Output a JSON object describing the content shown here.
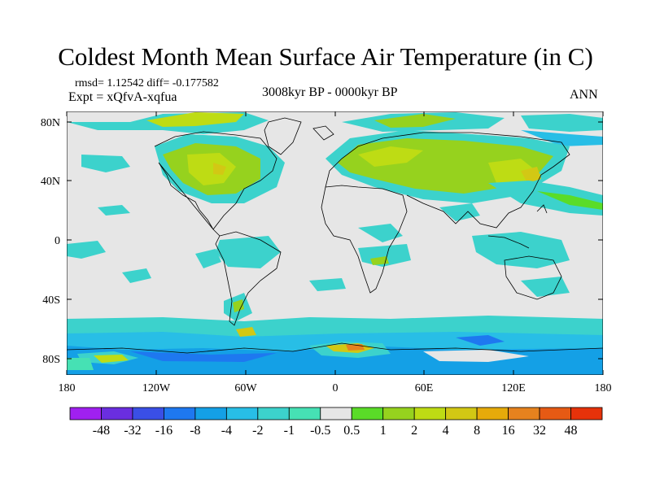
{
  "title": "Coldest Month Mean Surface Air Temperature (in C)",
  "stats": {
    "rmsd_label": "rmsd= 1.12542 diff= -0.177582"
  },
  "experiment": "Expt = xQfvA-xqfua",
  "period": "3008kyr BP - 0000kyr BP",
  "season": "ANN",
  "axes": {
    "y_ticks": [
      "80N",
      "40N",
      "0",
      "40S",
      "80S"
    ],
    "x_ticks": [
      "180",
      "120W",
      "60W",
      "0",
      "60E",
      "120E",
      "180"
    ]
  },
  "colorbar": {
    "colors": [
      "#a020f0",
      "#6a2ee0",
      "#3a4fe6",
      "#1e78f0",
      "#14a0e6",
      "#28bee6",
      "#3cd2cc",
      "#46e1b4",
      "#e6e6e6",
      "#5adc28",
      "#96d21e",
      "#bedc14",
      "#d2c814",
      "#e6aa0a",
      "#e6821e",
      "#e65a14",
      "#e6320a"
    ],
    "labels": [
      "-48",
      "-32",
      "-16",
      "-8",
      "-4",
      "-2",
      "-1",
      "-0.5",
      "0.5",
      "1",
      "2",
      "4",
      "8",
      "16",
      "32",
      "48"
    ]
  }
}
